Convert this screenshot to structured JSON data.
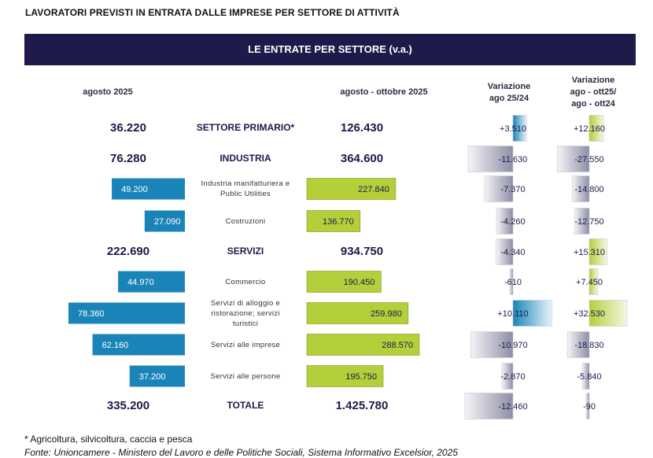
{
  "title": "LAVORATORI PREVISTI IN ENTRATA DALLE IMPRESE PER SETTORE DI ATTIVITÀ",
  "banner": "LE ENTRATE PER SETTORE (v.a.)",
  "column_headers": {
    "aug": "agosto 2025",
    "period": "agosto  - ottobre 2025",
    "var1": [
      "Variazione",
      "ago 25/24"
    ],
    "var2": [
      "Variazione",
      "ago - ott25/",
      "ago - ott24"
    ]
  },
  "chart_data": {
    "type": "table",
    "rows": [
      {
        "label": [
          "SETTORE PRIMARIO*"
        ],
        "level": "section",
        "aug": 36220,
        "aug_label": "36.220",
        "period": 126430,
        "period_label": "126.430",
        "var1": 3510,
        "var1_label": "+3.510",
        "var2": 12160,
        "var2_label": "+12.160"
      },
      {
        "label": [
          "INDUSTRIA"
        ],
        "level": "section",
        "aug": 76280,
        "aug_label": "76.280",
        "period": 364600,
        "period_label": "364.600",
        "var1": -11630,
        "var1_label": "-11.630",
        "var2": -27550,
        "var2_label": "-27.550"
      },
      {
        "label": [
          "Industria manifatturiera e",
          "Public Utilities"
        ],
        "level": "sub",
        "aug": 49200,
        "aug_label": "49.200",
        "period": 227840,
        "period_label": "227.840",
        "var1": -7370,
        "var1_label": "-7.370",
        "var2": -14800,
        "var2_label": "-14.800"
      },
      {
        "label": [
          "Costruzioni"
        ],
        "level": "sub",
        "aug": 27090,
        "aug_label": "27.090",
        "period": 136770,
        "period_label": "136.770",
        "var1": -4260,
        "var1_label": "-4.260",
        "var2": -12750,
        "var2_label": "-12.750"
      },
      {
        "label": [
          "SERVIZI"
        ],
        "level": "section",
        "aug": 222690,
        "aug_label": "222.690",
        "period": 934750,
        "period_label": "934.750",
        "var1": -4340,
        "var1_label": "-4.340",
        "var2": 15310,
        "var2_label": "+15.310"
      },
      {
        "label": [
          "Commercio"
        ],
        "level": "sub",
        "aug": 44970,
        "aug_label": "44.970",
        "period": 190450,
        "period_label": "190.450",
        "var1": -610,
        "var1_label": "-610",
        "var2": 7450,
        "var2_label": "+7.450"
      },
      {
        "label": [
          "Servizi di alloggio e",
          "ristorazione; servizi",
          "turistici"
        ],
        "level": "sub",
        "aug": 78360,
        "aug_label": "78.360",
        "period": 259980,
        "period_label": "259.980",
        "var1": 10110,
        "var1_label": "+10.110",
        "var2": 32530,
        "var2_label": "+32.530"
      },
      {
        "label": [
          "Servizi alle imprese"
        ],
        "level": "sub",
        "aug": 62160,
        "aug_label": "62.160",
        "period": 288570,
        "period_label": "288.570",
        "var1": -10970,
        "var1_label": "-10.970",
        "var2": -18830,
        "var2_label": "-18.830"
      },
      {
        "label": [
          "Servizi alle persone"
        ],
        "level": "sub",
        "aug": 37200,
        "aug_label": "37.200",
        "period": 195750,
        "period_label": "195.750",
        "var1": -2870,
        "var1_label": "-2.870",
        "var2": -5840,
        "var2_label": "-5.840"
      },
      {
        "label": [
          "TOTALE"
        ],
        "level": "section",
        "aug": 335200,
        "aug_label": "335.200",
        "period": 1425780,
        "period_label": "1.425.780",
        "var1": -12460,
        "var1_label": "-12.460",
        "var2": -90,
        "var2_label": "-90"
      }
    ]
  },
  "colors": {
    "banner": "#1e1a4a",
    "aug_bar": "#1a84b8",
    "period_bar": "#b3cf3a",
    "positive_var1": "#1a84b8",
    "positive_var2": "#b3cf3a",
    "negative": "#8e8ea6"
  },
  "footnote": "* Agricoltura, silvicoltura, caccia e pesca",
  "source": "Fonte: Unioncamere - Ministero del Lavoro e delle Politiche Sociali, Sistema Informativo Excelsior, 2025"
}
